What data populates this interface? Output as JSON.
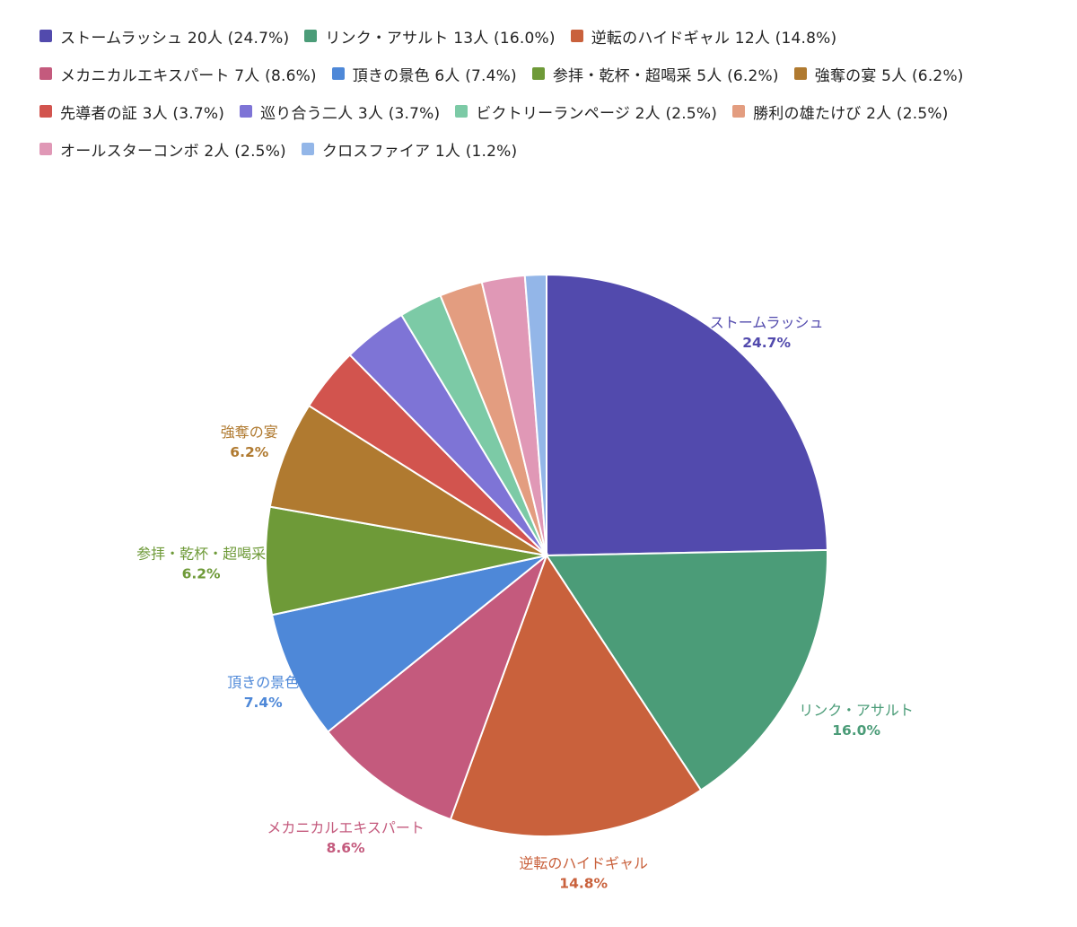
{
  "chart_data": {
    "type": "pie",
    "title": "",
    "legend_position": "top",
    "slices": [
      {
        "name": "ストームラッシュ",
        "count": 20,
        "unit": "人",
        "percent": "24.7%",
        "color": "#524aad",
        "legend_text": "ストームラッシュ 20人 (24.7%)",
        "labeled": true
      },
      {
        "name": "リンク・アサルト",
        "count": 13,
        "unit": "人",
        "percent": "16.0%",
        "color": "#4b9c78",
        "legend_text": "リンク・アサルト 13人 (16.0%)",
        "labeled": true
      },
      {
        "name": "逆転のハイドギャル",
        "count": 12,
        "unit": "人",
        "percent": "14.8%",
        "color": "#c9613c",
        "legend_text": "逆転のハイドギャル 12人 (14.8%)",
        "labeled": true
      },
      {
        "name": "メカニカルエキスパート",
        "count": 7,
        "unit": "人",
        "percent": "8.6%",
        "color": "#c45a7d",
        "legend_text": "メカニカルエキスパート 7人 (8.6%)",
        "labeled": true
      },
      {
        "name": "頂きの景色",
        "count": 6,
        "unit": "人",
        "percent": "7.4%",
        "color": "#4e88d8",
        "legend_text": "頂きの景色 6人 (7.4%)",
        "labeled": true
      },
      {
        "name": "参拝・乾杯・超喝采",
        "count": 5,
        "unit": "人",
        "percent": "6.2%",
        "color": "#6e9a38",
        "legend_text": "参拝・乾杯・超喝采 5人 (6.2%)",
        "labeled": true
      },
      {
        "name": "強奪の宴",
        "count": 5,
        "unit": "人",
        "percent": "6.2%",
        "color": "#b07a30",
        "legend_text": "強奪の宴 5人 (6.2%)",
        "labeled": true
      },
      {
        "name": "先導者の証",
        "count": 3,
        "unit": "人",
        "percent": "3.7%",
        "color": "#d2544e",
        "legend_text": "先導者の証 3人 (3.7%)",
        "labeled": false
      },
      {
        "name": "巡り合う二人",
        "count": 3,
        "unit": "人",
        "percent": "3.7%",
        "color": "#7e74d6",
        "legend_text": "巡り合う二人 3人 (3.7%)",
        "labeled": false
      },
      {
        "name": "ビクトリーランページ",
        "count": 2,
        "unit": "人",
        "percent": "2.5%",
        "color": "#7ccaa6",
        "legend_text": "ビクトリーランページ 2人 (2.5%)",
        "labeled": false
      },
      {
        "name": "勝利の雄たけび",
        "count": 2,
        "unit": "人",
        "percent": "2.5%",
        "color": "#e39d80",
        "legend_text": "勝利の雄たけび 2人 (2.5%)",
        "labeled": false
      },
      {
        "name": "オールスターコンボ",
        "count": 2,
        "unit": "人",
        "percent": "2.5%",
        "color": "#e098b6",
        "legend_text": "オールスターコンボ 2人 (2.5%)",
        "labeled": false
      },
      {
        "name": "クロスファイア",
        "count": 1,
        "unit": "人",
        "percent": "1.2%",
        "color": "#93b6e8",
        "legend_text": "クロスファイア 1人 (1.2%)",
        "labeled": false
      }
    ]
  }
}
